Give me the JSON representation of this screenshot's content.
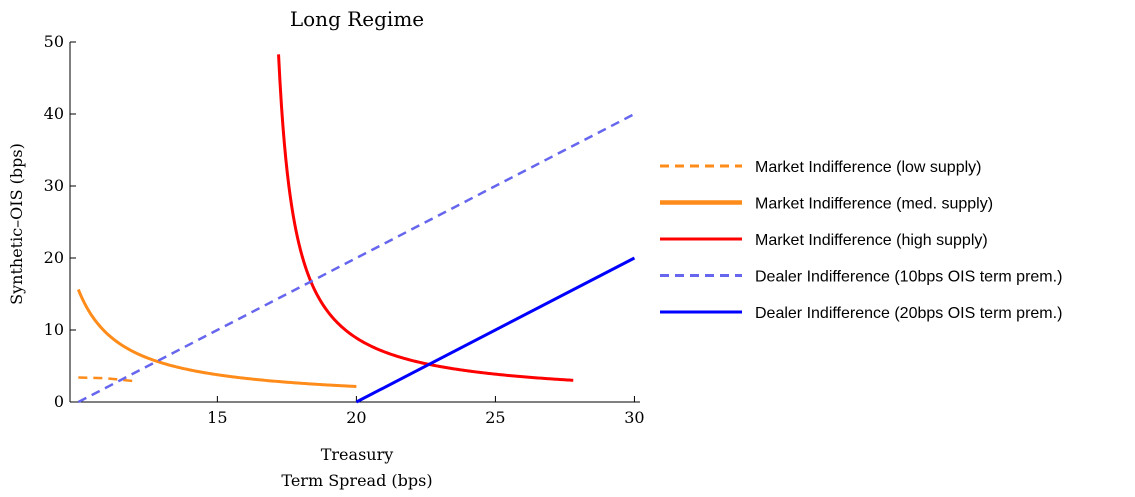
{
  "chart_data": {
    "type": "line",
    "title": "Long Regime",
    "xlabel_line1": "Treasury",
    "xlabel_line2": "Term Spread (bps)",
    "ylabel": "Synthetic–OIS (bps)",
    "xlim": [
      9.7,
      30.2
    ],
    "ylim": [
      0,
      50
    ],
    "xticks": [
      15,
      20,
      25,
      30
    ],
    "yticks": [
      0,
      10,
      20,
      30,
      40,
      50
    ],
    "grid": false,
    "legend_position": "right",
    "series": [
      {
        "name": "Market Indifference (low supply)",
        "color": "#ff8c1a",
        "dash": "dashed",
        "kind": "points",
        "points": [
          [
            10.0,
            3.4
          ],
          [
            11.0,
            3.3
          ],
          [
            12.0,
            2.9
          ]
        ]
      },
      {
        "name": "Market Indifference (med. supply)",
        "color": "#ff8c1a",
        "dash": "solid",
        "kind": "hyperbola",
        "k": 25.0,
        "x0": 8.4,
        "c": 0.0,
        "x_start": 10.0,
        "x_end": 20.0
      },
      {
        "name": "Market Indifference (high supply)",
        "color": "#ff0000",
        "dash": "solid",
        "kind": "hyperbola",
        "k": 28.7,
        "x0": 16.6,
        "c": 0.45,
        "x_start": 17.2,
        "x_end": 27.8
      },
      {
        "name": "Dealer Indifference (10bps OIS term prem.)",
        "color": "#6666ee",
        "dash": "dashed",
        "kind": "points",
        "points": [
          [
            10.0,
            0.0
          ],
          [
            30.0,
            40.0
          ]
        ]
      },
      {
        "name": "Dealer Indifference (20bps OIS term prem.)",
        "color": "#0000ff",
        "dash": "solid",
        "kind": "points",
        "points": [
          [
            20.0,
            0.0
          ],
          [
            30.0,
            20.0
          ]
        ]
      }
    ]
  }
}
